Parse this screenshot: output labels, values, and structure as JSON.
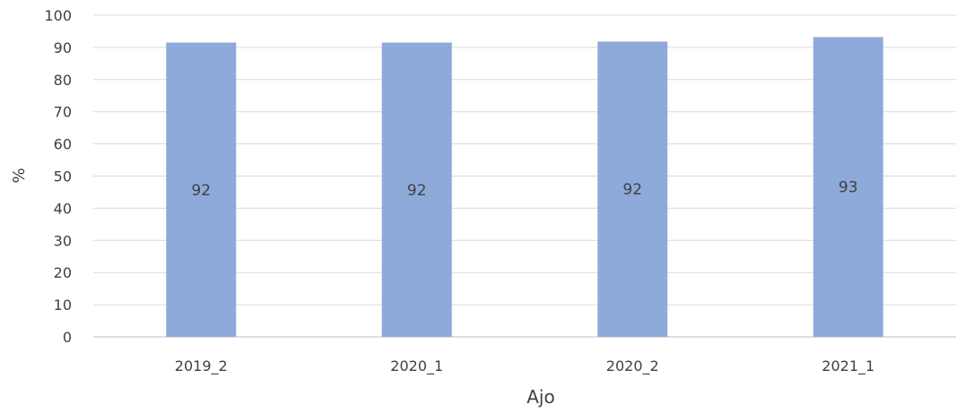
{
  "chart_data": {
    "type": "bar",
    "title": "",
    "xlabel": "Ajo",
    "ylabel": "%",
    "categories": [
      "2019_2",
      "2020_1",
      "2020_2",
      "2021_1"
    ],
    "values": [
      91.5,
      91.5,
      91.8,
      93.2
    ],
    "data_labels": [
      "92",
      "92",
      "92",
      "93"
    ],
    "ylim": [
      0,
      100
    ],
    "yticks": [
      "0",
      "10",
      "20",
      "30",
      "40",
      "50",
      "60",
      "70",
      "80",
      "90",
      "100"
    ],
    "grid": true,
    "legend": "none",
    "bar_color": "#8eaadb",
    "grid_color": "#d9d9d9"
  }
}
